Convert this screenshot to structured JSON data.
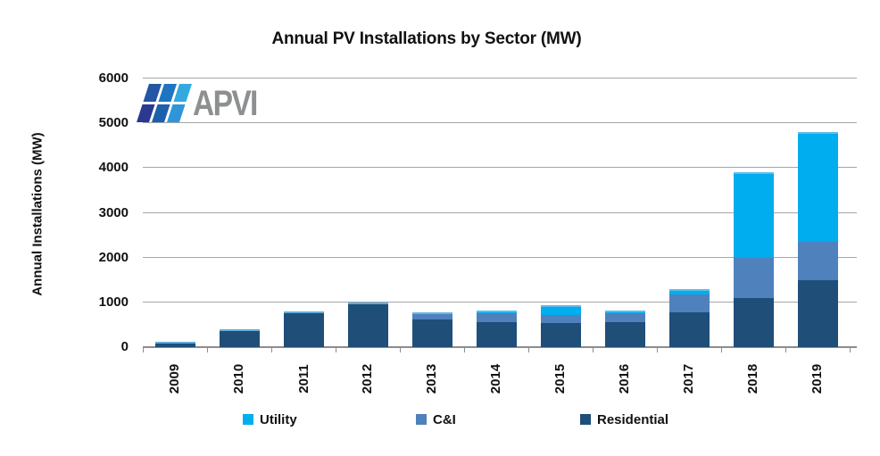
{
  "title": "Annual PV Installations by Sector (MW)",
  "logo": {
    "text": "APVI",
    "text_color": "#8d9091",
    "cells": [
      "#2456a4",
      "#1e74c0",
      "#33a9e0",
      "#2a3a90",
      "#1c5fad",
      "#2e96d8"
    ]
  },
  "chart_data": {
    "type": "bar",
    "stacked": true,
    "title": "Annual PV Installations by Sector (MW)",
    "xlabel": "",
    "ylabel": "Annual Installations (MW)",
    "ylim": [
      0,
      6000
    ],
    "yticks": [
      0,
      1000,
      2000,
      3000,
      4000,
      5000,
      6000
    ],
    "grid": true,
    "legend_position": "bottom",
    "categories": [
      "2009",
      "2010",
      "2011",
      "2012",
      "2013",
      "2014",
      "2015",
      "2016",
      "2017",
      "2018",
      "2019"
    ],
    "series": [
      {
        "name": "Utility",
        "color": "#00adee",
        "values": [
          0,
          0,
          0,
          0,
          0,
          60,
          220,
          50,
          120,
          1900,
          2440
        ]
      },
      {
        "name": "C&I",
        "color": "#4f81bd",
        "values": [
          0,
          0,
          0,
          0,
          170,
          210,
          180,
          200,
          400,
          900,
          860
        ]
      },
      {
        "name": "Residential",
        "color": "#1f4e79",
        "values": [
          110,
          390,
          800,
          1000,
          610,
          550,
          545,
          560,
          785,
          1100,
          1500
        ]
      }
    ],
    "totals": [
      110,
      390,
      800,
      1000,
      780,
      820,
      945,
      810,
      1305,
      3900,
      4800
    ]
  },
  "colors": {
    "gridline": "#a6a6a6",
    "axis": "#8c8c8c",
    "text": "#111111"
  }
}
